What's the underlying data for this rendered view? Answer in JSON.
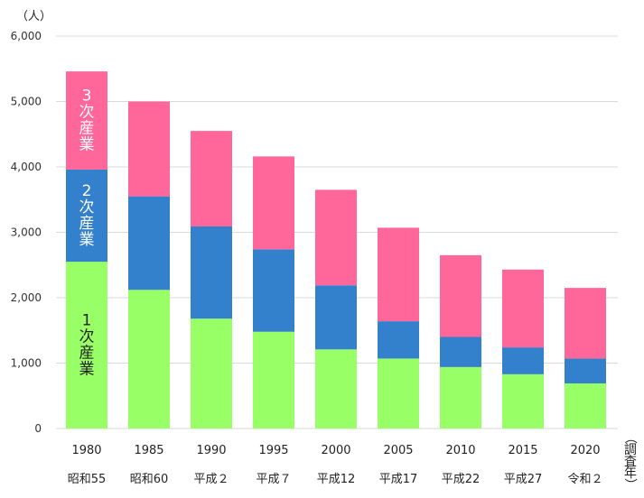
{
  "chart_data": {
    "type": "bar",
    "stacked": true,
    "title": "",
    "ylabel": "（人）",
    "xlabel": "（調査年）",
    "ylim": [
      0,
      6000
    ],
    "yticks": [
      0,
      1000,
      2000,
      3000,
      4000,
      5000,
      6000
    ],
    "ytick_labels": [
      "0",
      "1,000",
      "2,000",
      "3,000",
      "4,000",
      "5,000",
      "6,000"
    ],
    "grid": true,
    "categories": [
      "1980",
      "1985",
      "1990",
      "1995",
      "2000",
      "2005",
      "2010",
      "2015",
      "2020"
    ],
    "era_labels": [
      "昭和55",
      "昭和60",
      "平成２",
      "平成７",
      "平成12",
      "平成17",
      "平成22",
      "平成27",
      "令和２"
    ],
    "series": [
      {
        "name": "1次産業",
        "label_chars": [
          "1",
          "次",
          "産",
          "業"
        ],
        "color": "#99FF66",
        "label_color": "#222222",
        "values": [
          2550,
          2120,
          1680,
          1480,
          1210,
          1070,
          940,
          830,
          690
        ]
      },
      {
        "name": "2次産業",
        "label_chars": [
          "2",
          "次",
          "産",
          "業"
        ],
        "color": "#3380CC",
        "label_color": "#ffffff",
        "values": [
          1410,
          1430,
          1410,
          1260,
          980,
          570,
          460,
          410,
          380
        ]
      },
      {
        "name": "3次産業",
        "label_chars": [
          "3",
          "次",
          "産",
          "業"
        ],
        "color": "#FF6699",
        "label_color": "#ffffff",
        "values": [
          1500,
          1450,
          1460,
          1420,
          1460,
          1430,
          1250,
          1190,
          1080
        ]
      }
    ],
    "totals": [
      5460,
      5000,
      4550,
      4160,
      3650,
      3070,
      2650,
      2430,
      2150
    ],
    "legend": "inside-first-bar"
  }
}
